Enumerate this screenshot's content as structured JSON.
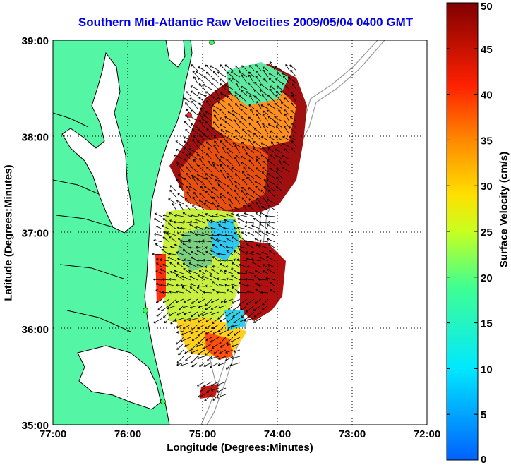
{
  "map": {
    "title": "Southern Mid-Atlantic Raw Velocities 2009/05/04 0400 GMT",
    "xlabel": "Longitude (Degrees:Minutes)",
    "ylabel": "Latitude (Degrees:Minutes)",
    "x_ticks": [
      "77:00",
      "76:00",
      "75:00",
      "74:00",
      "73:00",
      "72:00"
    ],
    "y_ticks": [
      "39:00",
      "38:00",
      "37:00",
      "36:00",
      "35:00"
    ],
    "lon_range": [
      -77,
      -72
    ],
    "lat_range": [
      35,
      39
    ],
    "grid": true,
    "land_color": "#55f5a6",
    "coast_color": "#000000",
    "bathymetry_color": "#999999"
  },
  "colorbar": {
    "label": "Surface Velocity (cm/s)",
    "ticks": [
      "0",
      "5",
      "10",
      "15",
      "20",
      "25",
      "30",
      "35",
      "40",
      "45",
      "50"
    ],
    "range": [
      0,
      50
    ],
    "colormap": "jet"
  }
}
